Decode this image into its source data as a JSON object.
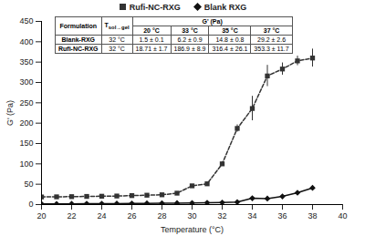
{
  "chart_data": {
    "type": "line",
    "x_label": "Temperature (°C)",
    "y_label": "G' (Pa)",
    "xlim": [
      20,
      40
    ],
    "xticks": [
      20,
      22,
      24,
      26,
      28,
      30,
      32,
      34,
      36,
      38,
      40
    ],
    "ylim": [
      0,
      450
    ],
    "yticks": [
      0,
      50,
      100,
      150,
      200,
      250,
      300,
      350,
      400,
      450
    ],
    "grid": false,
    "legend": "top",
    "x": [
      20,
      21,
      22,
      23,
      24,
      25,
      26,
      27,
      28,
      29,
      30,
      31,
      32,
      33,
      34,
      35,
      36,
      37,
      38
    ],
    "series": [
      {
        "name": "Rufi-NC-RXG",
        "color": "#333333",
        "marker": "square",
        "line_style": "dashed",
        "values": [
          18.7,
          19,
          19.5,
          20,
          20.5,
          21,
          22,
          23,
          24,
          28,
          46,
          51,
          100,
          187,
          236,
          316,
          333,
          353,
          360
        ],
        "errors": [
          1.7,
          1.5,
          1.5,
          1.5,
          1.5,
          1.5,
          1.5,
          1.5,
          1.5,
          2,
          3,
          3,
          5,
          8.9,
          30,
          26.1,
          15,
          11.7,
          22
        ]
      },
      {
        "name": "Blank RXG",
        "color": "#111111",
        "marker": "diamond",
        "line_style": "solid",
        "values": [
          1.5,
          1.6,
          1.8,
          2,
          2.2,
          2.5,
          2.8,
          3,
          3.2,
          3.5,
          4,
          4.5,
          5,
          6.2,
          15.5,
          14.8,
          20,
          29.2,
          41
        ],
        "errors": [
          0.1,
          0.2,
          0.2,
          0.2,
          0.2,
          0.2,
          0.3,
          0.3,
          0.3,
          0.4,
          0.4,
          0.5,
          0.5,
          0.9,
          1,
          0.8,
          1.5,
          2.6,
          2
        ]
      }
    ],
    "table": {
      "header": [
        "Formulation",
        {
          "main": "T",
          "sub": "sol→gel"
        },
        "G' (Pa)"
      ],
      "temps": [
        "20 °C",
        "33 °C",
        "35 °C",
        "37 °C"
      ],
      "rows": [
        [
          "Blank-RXG",
          "32 °C",
          "1.5 ± 0.1",
          "6.2 ± 0.9",
          "14.8 ± 0.8",
          "29.2 ± 2.6"
        ],
        [
          "Rufi-NC-RXG",
          "32 °C",
          "18.71 ± 1.7",
          "186.9 ± 8.9",
          "316.4 ± 26.1",
          "353.3 ± 11.7"
        ]
      ]
    }
  }
}
